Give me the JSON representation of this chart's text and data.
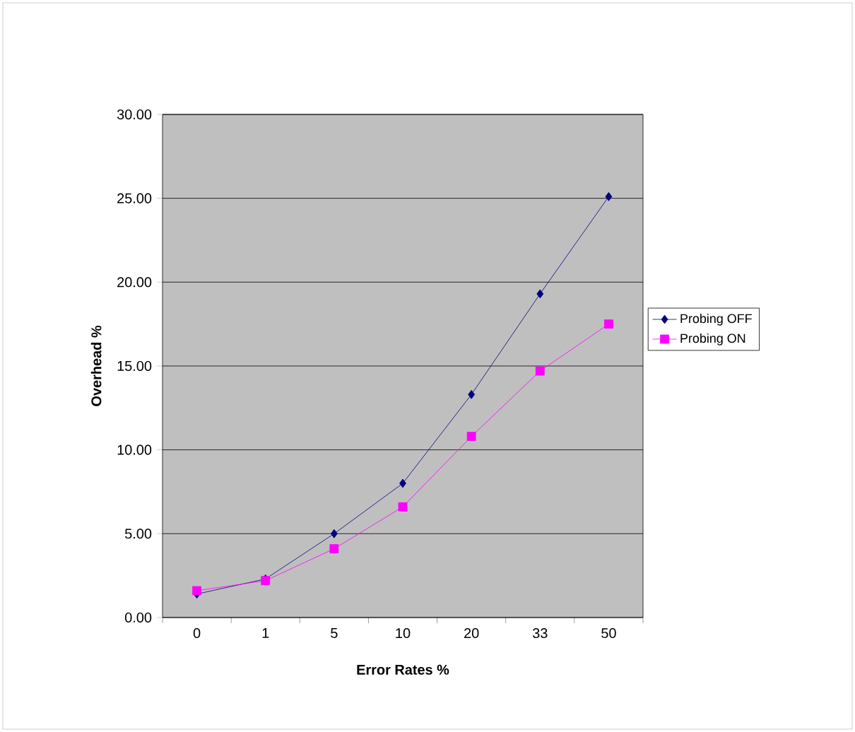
{
  "chart_data": {
    "type": "line",
    "xlabel": "Error Rates %",
    "ylabel": "Overhead %",
    "categories": [
      "0",
      "1",
      "5",
      "10",
      "20",
      "33",
      "50"
    ],
    "series": [
      {
        "name": "Probing OFF",
        "color": "#000080",
        "marker": "diamond",
        "values": [
          1.4,
          2.3,
          5.0,
          8.0,
          13.3,
          19.3,
          25.1
        ]
      },
      {
        "name": "Probing ON",
        "color": "#ff00ff",
        "marker": "square",
        "values": [
          1.6,
          2.2,
          4.1,
          6.6,
          10.8,
          14.7,
          17.5
        ]
      }
    ],
    "ylim": [
      0,
      30
    ],
    "yticks": [
      {
        "value": 0,
        "label": "0.00"
      },
      {
        "value": 5,
        "label": "5.00"
      },
      {
        "value": 10,
        "label": "10.00"
      },
      {
        "value": 15,
        "label": "15.00"
      },
      {
        "value": 20,
        "label": "20.00"
      },
      {
        "value": 25,
        "label": "25.00"
      },
      {
        "value": 30,
        "label": "30.00"
      }
    ],
    "grid": "y",
    "legend": "right",
    "line_style": "solid"
  }
}
